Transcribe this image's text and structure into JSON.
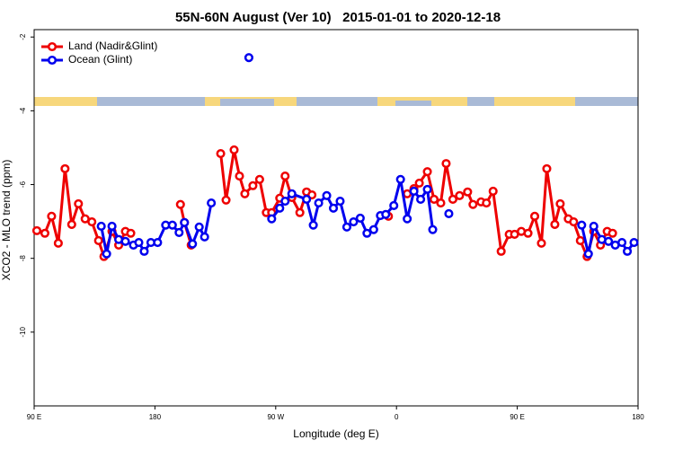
{
  "chart_data": {
    "type": "line",
    "title": "55N-60N August (Ver 10)   2015-01-01 to 2020-12-18",
    "xlabel": "Longitude (deg E)",
    "ylabel": "XCO2 - MLO trend (ppm)",
    "xlim": [
      90,
      540
    ],
    "ylim": [
      -12,
      -1.8
    ],
    "xticks": [
      {
        "value": 90,
        "label": "90 E"
      },
      180,
      {
        "value": 270,
        "label": "90 W"
      },
      {
        "value": 360,
        "label": "0"
      },
      {
        "value": 450,
        "label": "90 E"
      },
      {
        "value": 540,
        "label": "180"
      }
    ],
    "yticks": [
      -10,
      -8,
      -6,
      -4,
      -2
    ],
    "grid": false,
    "legend": "upper left",
    "series": [
      {
        "name": "Land (Nadir&Glint)",
        "color": "#ee0000",
        "x": [
          92,
          98,
          103,
          108,
          113,
          118,
          123,
          128,
          133,
          138,
          142,
          148,
          153,
          158,
          162,
          null,
          199,
          202,
          207,
          null,
          229,
          233,
          239,
          243,
          247,
          253,
          258,
          263,
          267,
          273,
          277,
          282,
          288,
          293,
          297,
          null,
          354,
          null,
          368,
          373,
          377,
          383,
          388,
          393,
          397,
          402,
          407,
          413,
          417,
          423,
          427,
          432,
          438,
          444,
          448,
          453,
          458,
          463,
          468,
          472,
          478,
          482,
          488,
          492,
          497,
          502,
          507,
          512,
          517,
          521
        ],
        "values": [
          -7.25,
          -7.32,
          -6.86,
          -7.59,
          -5.57,
          -7.08,
          -6.52,
          -6.93,
          -7.01,
          -7.52,
          -7.95,
          -7.27,
          -7.64,
          -7.27,
          -7.32,
          null,
          -6.54,
          -7.03,
          -7.64,
          null,
          -5.16,
          -6.42,
          -5.06,
          -5.77,
          -6.25,
          -6.03,
          -5.86,
          -6.76,
          -6.76,
          -6.37,
          -5.77,
          -6.35,
          -6.76,
          -6.2,
          -6.28,
          null,
          -6.86,
          null,
          -6.25,
          -6.11,
          -5.96,
          -5.65,
          -6.4,
          -6.5,
          -5.43,
          -6.4,
          -6.3,
          -6.2,
          -6.54,
          -6.47,
          -6.5,
          -6.18,
          -7.81,
          -7.35,
          -7.35,
          -7.27,
          -7.32,
          -6.86,
          -7.59,
          -5.57,
          -7.08,
          -6.52,
          -6.93,
          -7.01,
          -7.52,
          -7.95,
          -7.27,
          -7.64,
          -7.27,
          -7.32
        ]
      },
      {
        "name": "Ocean (Glint)",
        "color": "#0000ee",
        "x": [
          140,
          144,
          148,
          153,
          158,
          164,
          168,
          172,
          177,
          182,
          188,
          193,
          198,
          202,
          208,
          213,
          217,
          222,
          null,
          250,
          null,
          267,
          273,
          277,
          282,
          293,
          298,
          302,
          308,
          313,
          318,
          323,
          328,
          333,
          338,
          343,
          348,
          352,
          358,
          363,
          368,
          373,
          378,
          383,
          387,
          null,
          399,
          null,
          498,
          503,
          507,
          513,
          518,
          523,
          528,
          532,
          537
        ],
        "values": [
          -7.13,
          -7.88,
          -7.13,
          -7.49,
          -7.54,
          -7.64,
          -7.57,
          -7.81,
          -7.57,
          -7.57,
          -7.1,
          -7.1,
          -7.3,
          -7.03,
          -7.61,
          -7.15,
          -7.42,
          -6.5,
          null,
          -2.56,
          null,
          -6.93,
          -6.64,
          -6.45,
          -6.25,
          -6.4,
          -7.1,
          -6.5,
          -6.3,
          -6.64,
          -6.45,
          -7.15,
          -7.01,
          -6.91,
          -7.32,
          -7.22,
          -6.84,
          -6.81,
          -6.57,
          -5.86,
          -6.93,
          -6.18,
          -6.4,
          -6.13,
          -7.22,
          null,
          -6.79,
          null,
          -7.1,
          -7.88,
          -7.13,
          -7.49,
          -7.54,
          -7.64,
          -7.57,
          -7.81,
          -7.57
        ]
      }
    ]
  }
}
